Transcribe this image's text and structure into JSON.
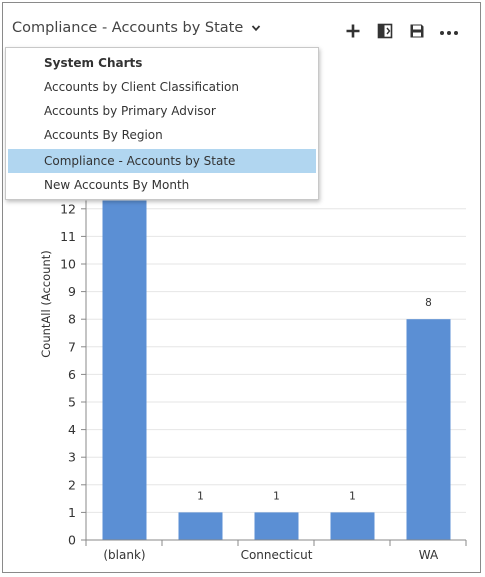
{
  "header": {
    "title": "Compliance - Accounts by State"
  },
  "toolbar": {
    "icons": [
      "plus-icon",
      "expand-pane-icon",
      "save-icon",
      "more-icon"
    ]
  },
  "menu": {
    "heading": "System Charts",
    "items": [
      {
        "label": "Accounts by Client Classification",
        "selected": false
      },
      {
        "label": "Accounts by Primary Advisor",
        "selected": false
      },
      {
        "label": "Accounts By Region",
        "selected": false
      },
      {
        "label": "Compliance - Accounts by State",
        "selected": true
      },
      {
        "label": "New Accounts By Month",
        "selected": false
      }
    ]
  },
  "colors": {
    "bar": "#5b8fd4",
    "selected_row": "#b1d6f0",
    "grid": "#e6e6e6"
  },
  "chart_data": {
    "type": "bar",
    "ylabel": "CountAll (Account)",
    "xlabel": "",
    "categories": [
      "(blank)",
      "",
      "Connecticut",
      "",
      "WA"
    ],
    "values": [
      12.3,
      1,
      1,
      1,
      8
    ],
    "data_labels": [
      "",
      "1",
      "1",
      "1",
      "8"
    ],
    "ylim": [
      0,
      12.3
    ],
    "yticks": [
      0,
      1,
      2,
      3,
      4,
      5,
      6,
      7,
      8,
      9,
      10,
      11,
      12
    ],
    "grid": true,
    "legend": "none"
  }
}
